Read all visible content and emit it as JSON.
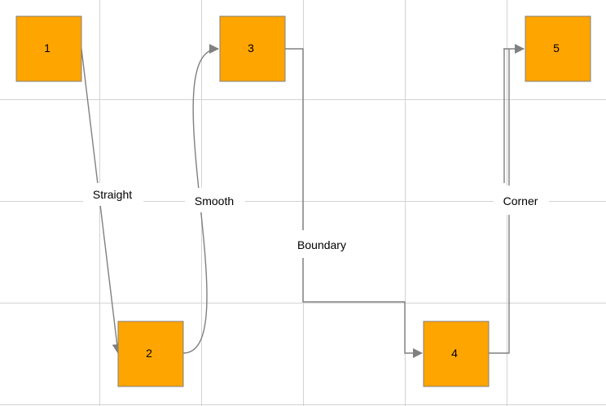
{
  "nodes": [
    {
      "id": "1",
      "label": "1"
    },
    {
      "id": "2",
      "label": "2"
    },
    {
      "id": "3",
      "label": "3"
    },
    {
      "id": "4",
      "label": "4"
    },
    {
      "id": "5",
      "label": "5"
    }
  ],
  "edges": [
    {
      "from": "1",
      "to": "2",
      "label": "Straight"
    },
    {
      "from": "2",
      "to": "3",
      "label": "Smooth"
    },
    {
      "from": "3",
      "to": "4",
      "label": "Boundary"
    },
    {
      "from": "4",
      "to": "5",
      "label": "Corner"
    }
  ],
  "colors": {
    "node_fill": "#ffa500",
    "node_stroke": "#808080",
    "edge": "#808080",
    "grid": "#d3d3d3"
  }
}
